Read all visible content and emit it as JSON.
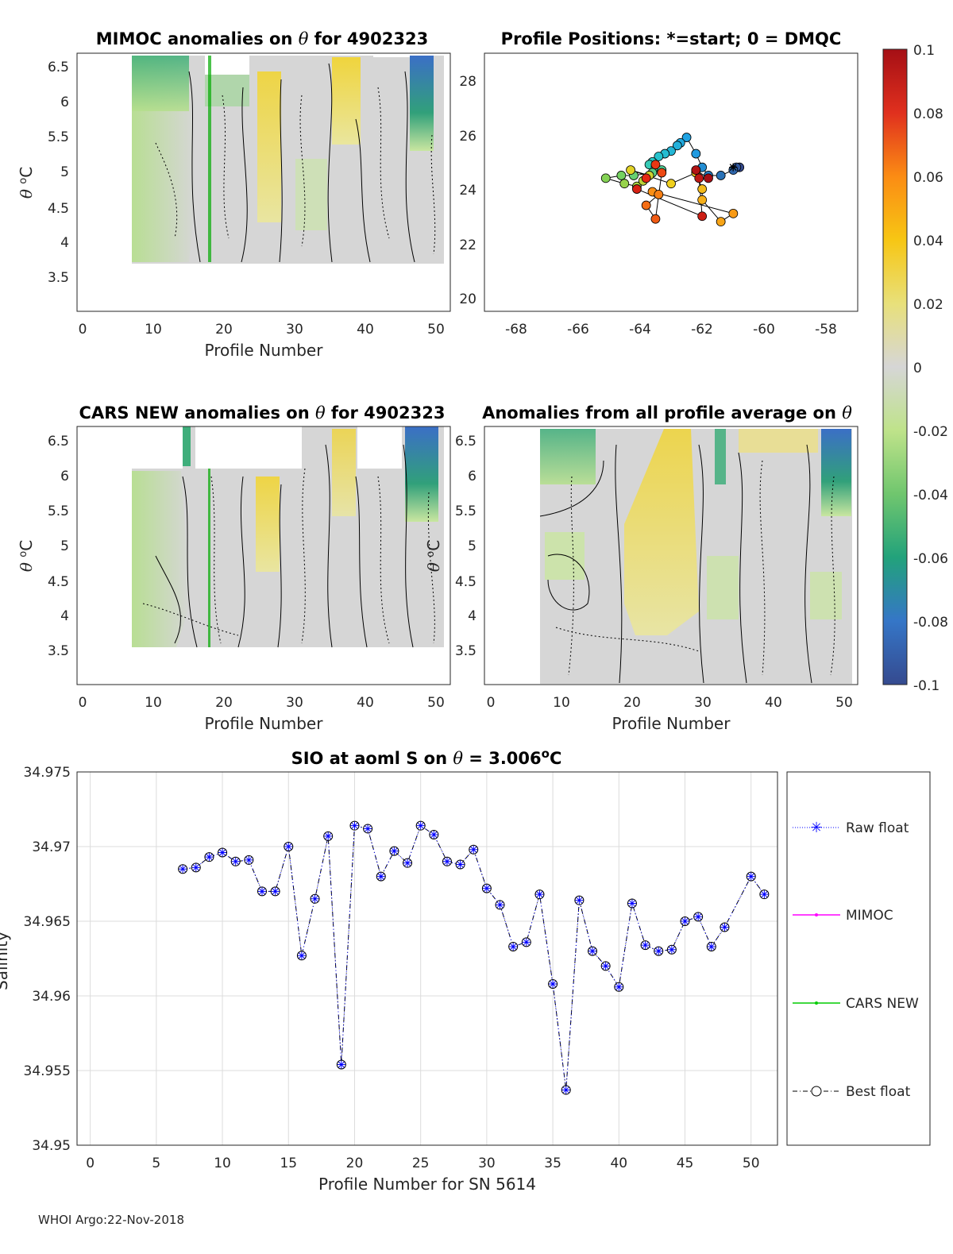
{
  "panels": {
    "mimoc": {
      "title_prefix": "MIMOC anomalies on",
      "title_var": "θ",
      "title_suffix": " for 4902323",
      "xlabel": "Profile Number",
      "ylabel_theta": "θ",
      "ylabel_unit": "C",
      "xticks": [
        "0",
        "10",
        "20",
        "30",
        "40",
        "50"
      ],
      "yticks": [
        "3.5",
        "4",
        "4.5",
        "5",
        "5.5",
        "6",
        "6.5"
      ]
    },
    "positions": {
      "title": "Profile Positions: *=start; 0 = DMQC",
      "xticks": [
        "-68",
        "-66",
        "-64",
        "-62",
        "-60",
        "-58"
      ],
      "yticks": [
        "20",
        "22",
        "24",
        "26",
        "28"
      ]
    },
    "cars": {
      "title_prefix": "CARS NEW anomalies on",
      "title_var": "θ",
      "title_suffix": " for 4902323",
      "xlabel": "Profile Number",
      "ylabel_theta": "θ",
      "ylabel_unit": "C",
      "xticks": [
        "0",
        "10",
        "20",
        "30",
        "40",
        "50"
      ],
      "yticks": [
        "3.5",
        "4",
        "4.5",
        "5",
        "5.5",
        "6",
        "6.5"
      ]
    },
    "avg": {
      "title_prefix": "Anomalies from all profile average on",
      "title_var": "θ",
      "xlabel": "Profile Number",
      "ylabel_theta": "θ",
      "ylabel_unit": "C",
      "xticks": [
        "0",
        "10",
        "20",
        "30",
        "40",
        "50"
      ],
      "yticks": [
        "3.5",
        "4",
        "4.5",
        "5",
        "5.5",
        "6",
        "6.5"
      ]
    },
    "colorbar": {
      "ticks": [
        "0.1",
        "0.08",
        "0.06",
        "0.04",
        "0.02",
        "0",
        "-0.02",
        "-0.04",
        "-0.06",
        "-0.08",
        "-0.1"
      ]
    }
  },
  "footer": "WHOI Argo:22-Nov-2018",
  "chart_data": {
    "type": "line",
    "title_prefix": "SIO at aoml S on",
    "title_var": "θ",
    "title_value": " = 3.006",
    "title_unit": "C",
    "xlabel": "Profile Number for SN 5614",
    "ylabel": "Salinity",
    "xlim": [
      -1,
      52
    ],
    "ylim": [
      34.95,
      34.975
    ],
    "xticks": [
      "0",
      "5",
      "10",
      "15",
      "20",
      "25",
      "30",
      "35",
      "40",
      "45",
      "50"
    ],
    "yticks": [
      "34.95",
      "34.955",
      "34.96",
      "34.965",
      "34.97",
      "34.975"
    ],
    "legend": {
      "placement": "right",
      "entries": [
        "Raw float",
        "MIMOC",
        "CARS NEW",
        "Best float"
      ],
      "colors": [
        "#0000ff",
        "#ff00ff",
        "#00cc00",
        "#000000"
      ]
    },
    "x": [
      7,
      8,
      9,
      10,
      11,
      12,
      13,
      14,
      15,
      16,
      17,
      18,
      19,
      20,
      21,
      22,
      23,
      24,
      25,
      26,
      27,
      28,
      29,
      30,
      31,
      32,
      33,
      34,
      35,
      36,
      37,
      38,
      39,
      40,
      41,
      42,
      43,
      44,
      45,
      46,
      47,
      48,
      50,
      51
    ],
    "series": [
      {
        "name": "Raw float",
        "values": [
          34.9685,
          34.9686,
          34.9693,
          34.9696,
          34.969,
          34.9691,
          34.967,
          34.967,
          34.97,
          34.9627,
          34.9665,
          34.9707,
          34.9554,
          34.9714,
          34.9712,
          34.968,
          34.9697,
          34.9689,
          34.9714,
          34.9708,
          34.969,
          34.9688,
          34.9698,
          34.9672,
          34.9661,
          34.9633,
          34.9636,
          34.9668,
          34.9608,
          34.9537,
          34.9664,
          34.963,
          34.962,
          34.9606,
          34.9662,
          34.9634,
          34.963,
          34.9631,
          34.965,
          34.9653,
          34.9633,
          34.9646,
          34.968,
          34.9668
        ]
      },
      {
        "name": "Best float",
        "values": [
          34.9685,
          34.9686,
          34.9693,
          34.9696,
          34.969,
          34.9691,
          34.967,
          34.967,
          34.97,
          34.9627,
          34.9665,
          34.9707,
          34.9554,
          34.9714,
          34.9712,
          34.968,
          34.9697,
          34.9689,
          34.9714,
          34.9708,
          34.969,
          34.9688,
          34.9698,
          34.9672,
          34.9661,
          34.9633,
          34.9636,
          34.9668,
          34.9608,
          34.9537,
          34.9664,
          34.963,
          34.962,
          34.9606,
          34.9662,
          34.9634,
          34.963,
          34.9631,
          34.965,
          34.9653,
          34.9633,
          34.9646,
          34.968,
          34.9668
        ]
      }
    ],
    "positions": {
      "lon": [
        -60.8,
        -60.9,
        -61.0,
        -61.4,
        -61.8,
        -62.0,
        -62.2,
        -62.5,
        -62.7,
        -62.8,
        -63.0,
        -63.2,
        -63.4,
        -63.6,
        -63.7,
        -63.5,
        -63.3,
        -63.6,
        -64.2,
        -64.6,
        -65.1,
        -64.5,
        -64.1,
        -63.9,
        -63.7,
        -64.3,
        -63.0,
        -62.2,
        -62.0,
        -62.0,
        -61.4,
        -61.0,
        -63.6,
        -63.4,
        -63.8,
        -63.5,
        -63.3,
        -63.5,
        -63.8,
        -64.1,
        -62.0,
        -62.1,
        -62.2,
        -61.8
      ],
      "lat": [
        24.8,
        24.8,
        24.7,
        24.5,
        24.5,
        24.8,
        25.3,
        25.9,
        25.7,
        25.6,
        25.4,
        25.3,
        25.2,
        25.0,
        24.9,
        24.8,
        24.7,
        24.6,
        24.5,
        24.5,
        24.4,
        24.2,
        24.1,
        24.3,
        24.5,
        24.7,
        24.2,
        24.6,
        24.0,
        23.6,
        22.8,
        23.1,
        23.9,
        23.8,
        23.4,
        22.9,
        24.6,
        24.9,
        24.4,
        24.0,
        23.0,
        24.4,
        24.7,
        24.4
      ]
    }
  }
}
